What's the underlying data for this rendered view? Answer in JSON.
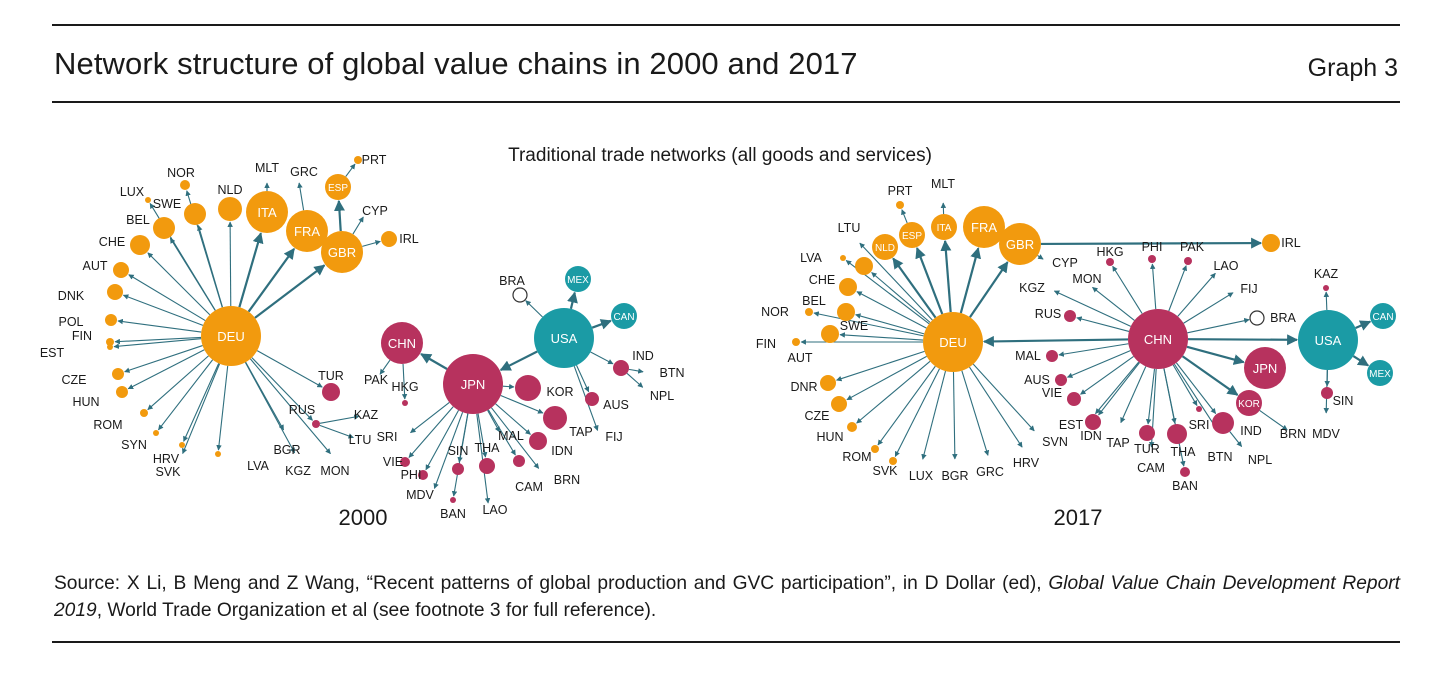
{
  "header": {
    "title": "Network structure of global value chains in 2000 and 2017",
    "graph_label": "Graph 3"
  },
  "subtitle": "Traditional trade networks (all goods and services)",
  "colors": {
    "europe": "#f29a0e",
    "asia": "#b7325e",
    "america": "#1b9ba5",
    "edge": "#2f6f7e",
    "rule": "#1a1a1a"
  },
  "networks": [
    {
      "year": "2000",
      "hubs": [
        {
          "id": "DEU",
          "group": "europe",
          "size": "large"
        },
        {
          "id": "JPN",
          "group": "asia",
          "size": "large"
        },
        {
          "id": "USA",
          "group": "america",
          "size": "large"
        },
        {
          "id": "CHN",
          "group": "asia",
          "size": "medium"
        },
        {
          "id": "GBR",
          "group": "europe",
          "size": "medium"
        },
        {
          "id": "FRA",
          "group": "europe",
          "size": "medium"
        },
        {
          "id": "ITA",
          "group": "europe",
          "size": "medium"
        },
        {
          "id": "ESP",
          "group": "europe",
          "size": "small"
        },
        {
          "id": "MEX",
          "group": "america",
          "size": "small"
        },
        {
          "id": "CAN",
          "group": "america",
          "size": "small"
        }
      ],
      "countries": [
        "NLD",
        "SWE",
        "NOR",
        "LUX",
        "BEL",
        "CHE",
        "AUT",
        "DNK",
        "POL",
        "FIN",
        "EST",
        "CZE",
        "HUN",
        "ROM",
        "SYN",
        "HRV",
        "SVK",
        "LVA",
        "BGR",
        "KGZ",
        "MON",
        "RUS",
        "TUR",
        "KAZ",
        "LTU",
        "PAK",
        "HKG",
        "SRI",
        "VIE",
        "PHI",
        "MDV",
        "BAN",
        "SIN",
        "THA",
        "LAO",
        "CAM",
        "MAL",
        "BRN",
        "IDN",
        "TAP",
        "KOR",
        "FIJ",
        "AUS",
        "IND",
        "BTN",
        "NPL",
        "BRA",
        "MLT",
        "GRC",
        "PRT",
        "CYP",
        "IRL"
      ]
    },
    {
      "year": "2017",
      "hubs": [
        {
          "id": "DEU",
          "group": "europe",
          "size": "large"
        },
        {
          "id": "CHN",
          "group": "asia",
          "size": "large"
        },
        {
          "id": "USA",
          "group": "america",
          "size": "large"
        },
        {
          "id": "JPN",
          "group": "asia",
          "size": "medium"
        },
        {
          "id": "KOR",
          "group": "asia",
          "size": "small"
        },
        {
          "id": "GBR",
          "group": "europe",
          "size": "medium"
        },
        {
          "id": "FRA",
          "group": "europe",
          "size": "medium"
        },
        {
          "id": "ITA",
          "group": "europe",
          "size": "small"
        },
        {
          "id": "ESP",
          "group": "europe",
          "size": "small"
        },
        {
          "id": "NLD",
          "group": "europe",
          "size": "small"
        },
        {
          "id": "CAN",
          "group": "america",
          "size": "small"
        },
        {
          "id": "MEX",
          "group": "america",
          "size": "small"
        }
      ],
      "countries": [
        "PRT",
        "MLT",
        "LTU",
        "LVA",
        "CHE",
        "BEL",
        "NOR",
        "FIN",
        "SWE",
        "AUT",
        "DNR",
        "CZE",
        "HUN",
        "ROM",
        "SVK",
        "LUX",
        "BGR",
        "GRC",
        "HRV",
        "SVN",
        "CYP",
        "KGZ",
        "RUS",
        "MON",
        "HKG",
        "PHI",
        "PAK",
        "LAO",
        "FIJ",
        "BRA",
        "IRL",
        "KAZ",
        "SIN",
        "MDV",
        "MAL",
        "AUS",
        "VIE",
        "EST",
        "IDN",
        "TAP",
        "TUR",
        "CAM",
        "THA",
        "BAN",
        "SRI",
        "BTN",
        "IND",
        "NPL",
        "BRN"
      ]
    }
  ],
  "source": {
    "prefix": "Source: X Li, B Meng and Z Wang, “Recent patterns of global production and GVC participation”, in D Dollar (ed), ",
    "italic": "Global Value Chain Development Report 2019",
    "suffix": ", World Trade Organization et al (see footnote 3 for full reference)."
  }
}
